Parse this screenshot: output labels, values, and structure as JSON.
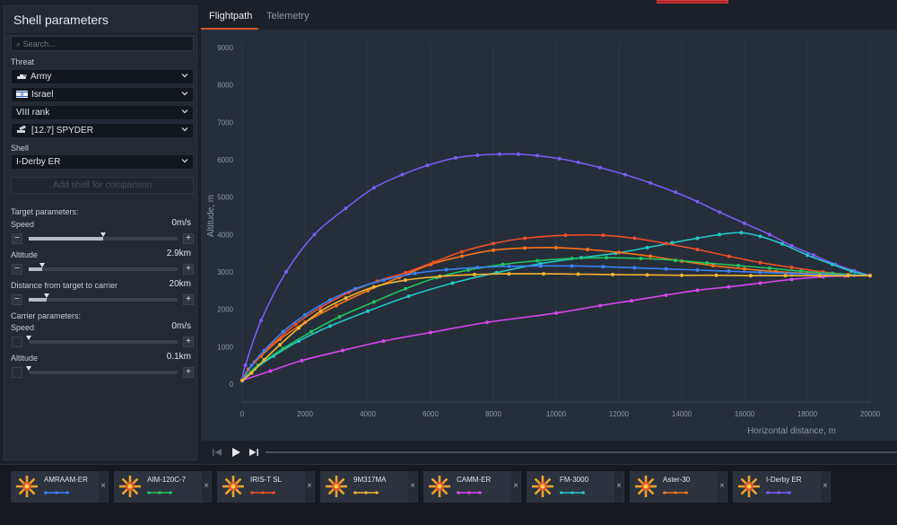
{
  "panel": {
    "title": "Shell parameters",
    "search_placeholder": "Search...",
    "threat_label": "Threat",
    "threat_type": "Army",
    "nation": "Israel",
    "rank": "VIII rank",
    "vehicle": "[12.7] SPYDER",
    "shell_label": "Shell",
    "shell": "I-Derby ER",
    "add_shell": "Add shell for comparison",
    "target_params_label": "Target parameters:",
    "target_speed_label": "Speed",
    "target_speed_value": "0m/s",
    "target_speed_fraction": 0.5,
    "target_alt_label": "Altitude",
    "target_alt_value": "2.9km",
    "target_alt_fraction": 0.09,
    "distance_label": "Distance from target to carrier",
    "distance_value": "20km",
    "distance_fraction": 0.12,
    "carrier_params_label": "Carrier parameters:",
    "carrier_speed_label": "Speed",
    "carrier_speed_value": "0m/s",
    "carrier_speed_fraction": 0.0,
    "carrier_alt_label": "Altitude",
    "carrier_alt_value": "0.1km",
    "carrier_alt_fraction": 0.0,
    "minus": "−",
    "plus": "+"
  },
  "tabs": {
    "flightpath": "Flightpath",
    "telemetry": "Telemetry"
  },
  "shells": [
    {
      "name": "AMRAAM-ER",
      "color": "#3b82f6"
    },
    {
      "name": "AIM-120C-7",
      "color": "#22c55e"
    },
    {
      "name": "IRIS-T SL",
      "color": "#ef4f27"
    },
    {
      "name": "9M317MA",
      "color": "#f2b530"
    },
    {
      "name": "CAMM-ER",
      "color": "#d946ef"
    },
    {
      "name": "FM-3000",
      "color": "#22c7c7"
    },
    {
      "name": "Aster-30",
      "color": "#f97316"
    },
    {
      "name": "I-Derby ER",
      "color": "#7c5cf5"
    }
  ],
  "close_glyph": "×",
  "chart_data": {
    "type": "line",
    "xlabel": "Horizontal distance, m",
    "ylabel": "Altitude, m",
    "xlim": [
      0,
      20000
    ],
    "ylim": [
      0,
      9000
    ],
    "xticks": [
      0,
      2000,
      4000,
      6000,
      8000,
      10000,
      12000,
      14000,
      16000,
      18000,
      20000
    ],
    "yticks": [
      0,
      1000,
      2000,
      3000,
      4000,
      5000,
      6000,
      7000,
      8000,
      9000
    ],
    "grid": "vertical",
    "series": [
      {
        "name": "I-Derby ER",
        "color": "#7c5cf5",
        "points": [
          [
            0,
            100
          ],
          [
            100,
            500
          ],
          [
            600,
            1700
          ],
          [
            1400,
            3000
          ],
          [
            2300,
            4000
          ],
          [
            3300,
            4700
          ],
          [
            4200,
            5250
          ],
          [
            5100,
            5600
          ],
          [
            5900,
            5850
          ],
          [
            6800,
            6050
          ],
          [
            7500,
            6120
          ],
          [
            8200,
            6150
          ],
          [
            8800,
            6150
          ],
          [
            9400,
            6110
          ],
          [
            10100,
            6030
          ],
          [
            10700,
            5930
          ],
          [
            11400,
            5790
          ],
          [
            12200,
            5600
          ],
          [
            13000,
            5380
          ],
          [
            13800,
            5130
          ],
          [
            14500,
            4880
          ],
          [
            15200,
            4600
          ],
          [
            16000,
            4300
          ],
          [
            16800,
            4000
          ],
          [
            17500,
            3700
          ],
          [
            18200,
            3450
          ],
          [
            18900,
            3200
          ],
          [
            19500,
            3030
          ],
          [
            20000,
            2900
          ]
        ]
      },
      {
        "name": "CAMM-ER",
        "color": "#d946ef",
        "points": [
          [
            0,
            100
          ],
          [
            900,
            350
          ],
          [
            1900,
            630
          ],
          [
            3200,
            900
          ],
          [
            4500,
            1150
          ],
          [
            6000,
            1380
          ],
          [
            7800,
            1650
          ],
          [
            10000,
            1900
          ],
          [
            11400,
            2100
          ],
          [
            12400,
            2230
          ],
          [
            13500,
            2380
          ],
          [
            14500,
            2510
          ],
          [
            15500,
            2600
          ],
          [
            16500,
            2700
          ],
          [
            17500,
            2800
          ],
          [
            18500,
            2870
          ],
          [
            19200,
            2890
          ],
          [
            20000,
            2900
          ]
        ]
      },
      {
        "name": "FM-3000",
        "color": "#22c7c7",
        "points": [
          [
            0,
            100
          ],
          [
            400,
            400
          ],
          [
            1000,
            750
          ],
          [
            1800,
            1150
          ],
          [
            2800,
            1550
          ],
          [
            4000,
            1950
          ],
          [
            5300,
            2350
          ],
          [
            6700,
            2700
          ],
          [
            8100,
            2980
          ],
          [
            9500,
            3220
          ],
          [
            10800,
            3380
          ],
          [
            11900,
            3500
          ],
          [
            12900,
            3650
          ],
          [
            13700,
            3780
          ],
          [
            14500,
            3900
          ],
          [
            15200,
            4000
          ],
          [
            15900,
            4050
          ],
          [
            16500,
            3950
          ],
          [
            17200,
            3750
          ],
          [
            18000,
            3450
          ],
          [
            18800,
            3200
          ],
          [
            19400,
            3020
          ],
          [
            20000,
            2900
          ]
        ]
      },
      {
        "name": "Aster-30",
        "color": "#f97316",
        "points": [
          [
            0,
            100
          ],
          [
            200,
            400
          ],
          [
            600,
            750
          ],
          [
            1200,
            1200
          ],
          [
            2000,
            1650
          ],
          [
            3000,
            2100
          ],
          [
            4000,
            2500
          ],
          [
            5000,
            2850
          ],
          [
            6000,
            3200
          ],
          [
            7000,
            3420
          ],
          [
            8000,
            3580
          ],
          [
            9000,
            3640
          ],
          [
            10000,
            3650
          ],
          [
            11000,
            3600
          ],
          [
            12000,
            3520
          ],
          [
            13000,
            3420
          ],
          [
            14000,
            3290
          ],
          [
            15000,
            3170
          ],
          [
            16000,
            3080
          ],
          [
            17000,
            3010
          ],
          [
            18000,
            2960
          ],
          [
            19000,
            2920
          ],
          [
            20000,
            2900
          ]
        ]
      },
      {
        "name": "IRIS-T SL",
        "color": "#ef4f27",
        "points": [
          [
            0,
            100
          ],
          [
            400,
            600
          ],
          [
            1000,
            1100
          ],
          [
            1700,
            1600
          ],
          [
            2500,
            2050
          ],
          [
            3400,
            2450
          ],
          [
            4300,
            2750
          ],
          [
            5200,
            2980
          ],
          [
            6100,
            3260
          ],
          [
            7000,
            3540
          ],
          [
            8000,
            3760
          ],
          [
            9000,
            3900
          ],
          [
            10300,
            3980
          ],
          [
            11500,
            3980
          ],
          [
            12500,
            3900
          ],
          [
            13500,
            3760
          ],
          [
            14500,
            3600
          ],
          [
            15500,
            3420
          ],
          [
            16500,
            3250
          ],
          [
            17500,
            3120
          ],
          [
            18500,
            3000
          ],
          [
            19300,
            2930
          ],
          [
            20000,
            2900
          ]
        ]
      },
      {
        "name": "AIM-120C-7",
        "color": "#22c55e",
        "points": [
          [
            0,
            100
          ],
          [
            500,
            500
          ],
          [
            1300,
            950
          ],
          [
            2200,
            1400
          ],
          [
            3100,
            1800
          ],
          [
            4200,
            2200
          ],
          [
            5200,
            2550
          ],
          [
            6200,
            2850
          ],
          [
            7200,
            3050
          ],
          [
            8300,
            3200
          ],
          [
            9400,
            3300
          ],
          [
            10500,
            3360
          ],
          [
            11600,
            3380
          ],
          [
            12700,
            3360
          ],
          [
            13800,
            3310
          ],
          [
            14800,
            3240
          ],
          [
            15800,
            3170
          ],
          [
            16800,
            3100
          ],
          [
            17800,
            3020
          ],
          [
            18800,
            2960
          ],
          [
            19500,
            2920
          ],
          [
            20000,
            2900
          ]
        ]
      },
      {
        "name": "AMRAAM-ER",
        "color": "#3b82f6",
        "points": [
          [
            0,
            100
          ],
          [
            300,
            500
          ],
          [
            700,
            900
          ],
          [
            1300,
            1400
          ],
          [
            2000,
            1850
          ],
          [
            2800,
            2250
          ],
          [
            3600,
            2550
          ],
          [
            4500,
            2780
          ],
          [
            5500,
            2960
          ],
          [
            6500,
            3060
          ],
          [
            7500,
            3120
          ],
          [
            8500,
            3150
          ],
          [
            9500,
            3160
          ],
          [
            10500,
            3160
          ],
          [
            11500,
            3140
          ],
          [
            12500,
            3110
          ],
          [
            13500,
            3080
          ],
          [
            14500,
            3050
          ],
          [
            15500,
            3020
          ],
          [
            16500,
            2990
          ],
          [
            17500,
            2960
          ],
          [
            18500,
            2930
          ],
          [
            19500,
            2910
          ],
          [
            20000,
            2900
          ]
        ]
      },
      {
        "name": "9M317MA",
        "color": "#f2b530",
        "points": [
          [
            0,
            100
          ],
          [
            300,
            300
          ],
          [
            700,
            650
          ],
          [
            1200,
            1050
          ],
          [
            1800,
            1500
          ],
          [
            2500,
            1950
          ],
          [
            3300,
            2300
          ],
          [
            4200,
            2600
          ],
          [
            5200,
            2780
          ],
          [
            6300,
            2880
          ],
          [
            7400,
            2930
          ],
          [
            8500,
            2950
          ],
          [
            9600,
            2950
          ],
          [
            10700,
            2940
          ],
          [
            11800,
            2930
          ],
          [
            12900,
            2920
          ],
          [
            14000,
            2910
          ],
          [
            15100,
            2910
          ],
          [
            16200,
            2900
          ],
          [
            17300,
            2900
          ],
          [
            18400,
            2900
          ],
          [
            19300,
            2900
          ],
          [
            20000,
            2900
          ]
        ]
      }
    ]
  }
}
